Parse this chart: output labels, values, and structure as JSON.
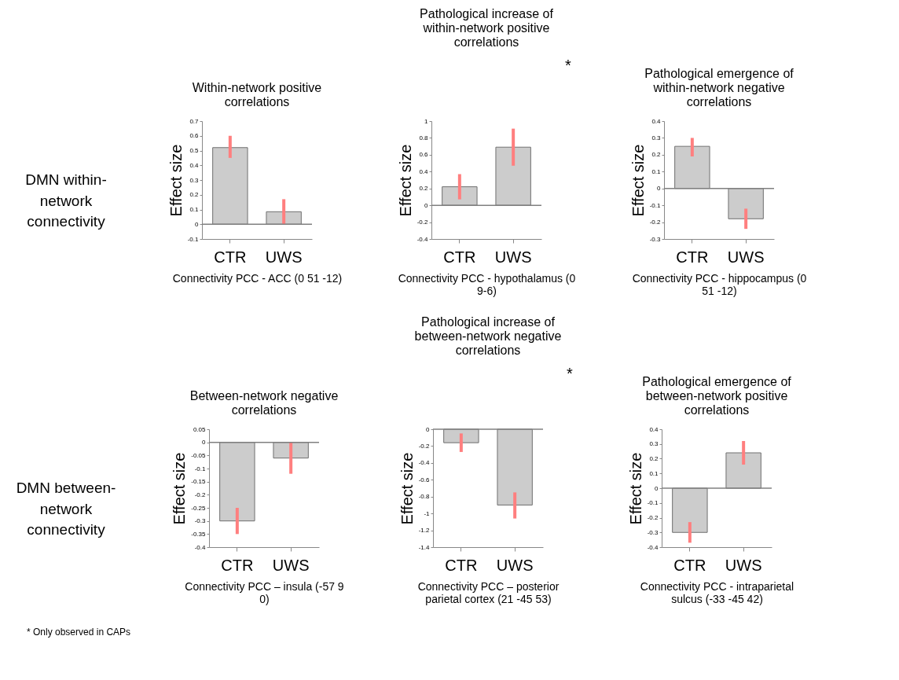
{
  "chart_data": [
    {
      "type": "bar",
      "title": "Within-network positive correlations",
      "xlabel": "Connectivity PCC - ACC (0 51 -12)",
      "ylabel": "Effect size",
      "categories": [
        "CTR",
        "UWS"
      ],
      "series": [
        {
          "color": "#cccccc",
          "values": [
            0.52,
            0.085
          ],
          "errors": [
            [
              0.45,
              0.6
            ],
            [
              0.0,
              0.17
            ]
          ]
        }
      ],
      "ylim": [
        -0.1,
        0.7
      ],
      "yticks": [
        -0.1,
        0,
        0.1,
        0.2,
        0.3,
        0.4,
        0.5,
        0.6,
        0.7
      ],
      "ref_lines": [
        {
          "axis": "y",
          "value": 0,
          "color": "#808080"
        }
      ],
      "grid": false,
      "annotations": [
        "DMN within-network connectivity"
      ]
    },
    {
      "type": "bar",
      "title": "Pathological increase of within-network positive correlations",
      "xlabel": "Connectivity PCC - hypothalamus (0 9-6)",
      "ylabel": "Effect size",
      "categories": [
        "CTR",
        "UWS"
      ],
      "series": [
        {
          "color": "#cccccc",
          "values": [
            0.22,
            0.69
          ],
          "errors": [
            [
              0.07,
              0.37
            ],
            [
              0.47,
              0.91
            ]
          ]
        }
      ],
      "ylim": [
        -0.4,
        1
      ],
      "yticks": [
        -0.4,
        -0.2,
        0,
        0.2,
        0.4,
        0.6,
        0.8,
        1
      ],
      "ref_lines": [
        {
          "axis": "y",
          "value": 0,
          "color": "#808080"
        }
      ],
      "grid": false,
      "annotations": [
        "*"
      ]
    },
    {
      "type": "bar",
      "title": "Pathological emergence of within-network negative correlations",
      "xlabel": "Connectivity PCC - hippocampus (0 51 -12)",
      "ylabel": "Effect size",
      "categories": [
        "CTR",
        "UWS"
      ],
      "series": [
        {
          "color": "#cccccc",
          "values": [
            0.25,
            -0.18
          ],
          "errors": [
            [
              0.19,
              0.3
            ],
            [
              -0.24,
              -0.12
            ]
          ]
        }
      ],
      "ylim": [
        -0.3,
        0.4
      ],
      "yticks": [
        -0.3,
        -0.2,
        -0.1,
        0,
        0.1,
        0.2,
        0.3,
        0.4
      ],
      "ref_lines": [
        {
          "axis": "y",
          "value": 0,
          "color": "#808080"
        }
      ],
      "grid": false
    },
    {
      "type": "bar",
      "title": "Between-network negative correlations",
      "xlabel": "Connectivity PCC – insula (-57 9 0)",
      "ylabel": "Effect size",
      "categories": [
        "CTR",
        "UWS"
      ],
      "series": [
        {
          "color": "#cccccc",
          "values": [
            -0.3,
            -0.06
          ],
          "errors": [
            [
              -0.35,
              -0.25
            ],
            [
              -0.12,
              0.0
            ]
          ]
        }
      ],
      "ylim": [
        -0.4,
        0.05
      ],
      "yticks": [
        -0.4,
        -0.35,
        -0.3,
        -0.25,
        -0.2,
        -0.15,
        -0.1,
        -0.05,
        0,
        0.05
      ],
      "ref_lines": [
        {
          "axis": "y",
          "value": 0,
          "color": "#808080"
        }
      ],
      "grid": false,
      "annotations": [
        "DMN between-network connectivity",
        "* Only observed in CAPs"
      ]
    },
    {
      "type": "bar",
      "title": "Pathological increase of between-network negative correlations",
      "xlabel": "Connectivity PCC – posterior parietal cortex (21 -45 53)",
      "ylabel": "Effect size",
      "categories": [
        "CTR",
        "UWS"
      ],
      "series": [
        {
          "color": "#cccccc",
          "values": [
            -0.16,
            -0.9
          ],
          "errors": [
            [
              -0.27,
              -0.05
            ],
            [
              -1.06,
              -0.75
            ]
          ]
        }
      ],
      "ylim": [
        -1.4,
        0
      ],
      "yticks": [
        -1.4,
        -1.2,
        -1,
        -0.8,
        -0.6,
        -0.4,
        -0.2,
        0
      ],
      "ref_lines": [
        {
          "axis": "y",
          "value": 0,
          "color": "#808080"
        }
      ],
      "grid": false,
      "annotations": [
        "*"
      ]
    },
    {
      "type": "bar",
      "title": "Pathological emergence of between-network positive correlations",
      "xlabel": "Connectivity PCC - intraparietal sulcus (-33 -45 42)",
      "ylabel": "Effect size",
      "categories": [
        "CTR",
        "UWS"
      ],
      "series": [
        {
          "color": "#cccccc",
          "values": [
            -0.3,
            0.24
          ],
          "errors": [
            [
              -0.37,
              -0.23
            ],
            [
              0.16,
              0.32
            ]
          ]
        }
      ],
      "ylim": [
        -0.4,
        0.4
      ],
      "yticks": [
        -0.4,
        -0.3,
        -0.2,
        -0.1,
        0,
        0.1,
        0.2,
        0.3,
        0.4
      ],
      "ref_lines": [
        {
          "axis": "y",
          "value": 0,
          "color": "#808080"
        }
      ],
      "grid": false
    }
  ]
}
